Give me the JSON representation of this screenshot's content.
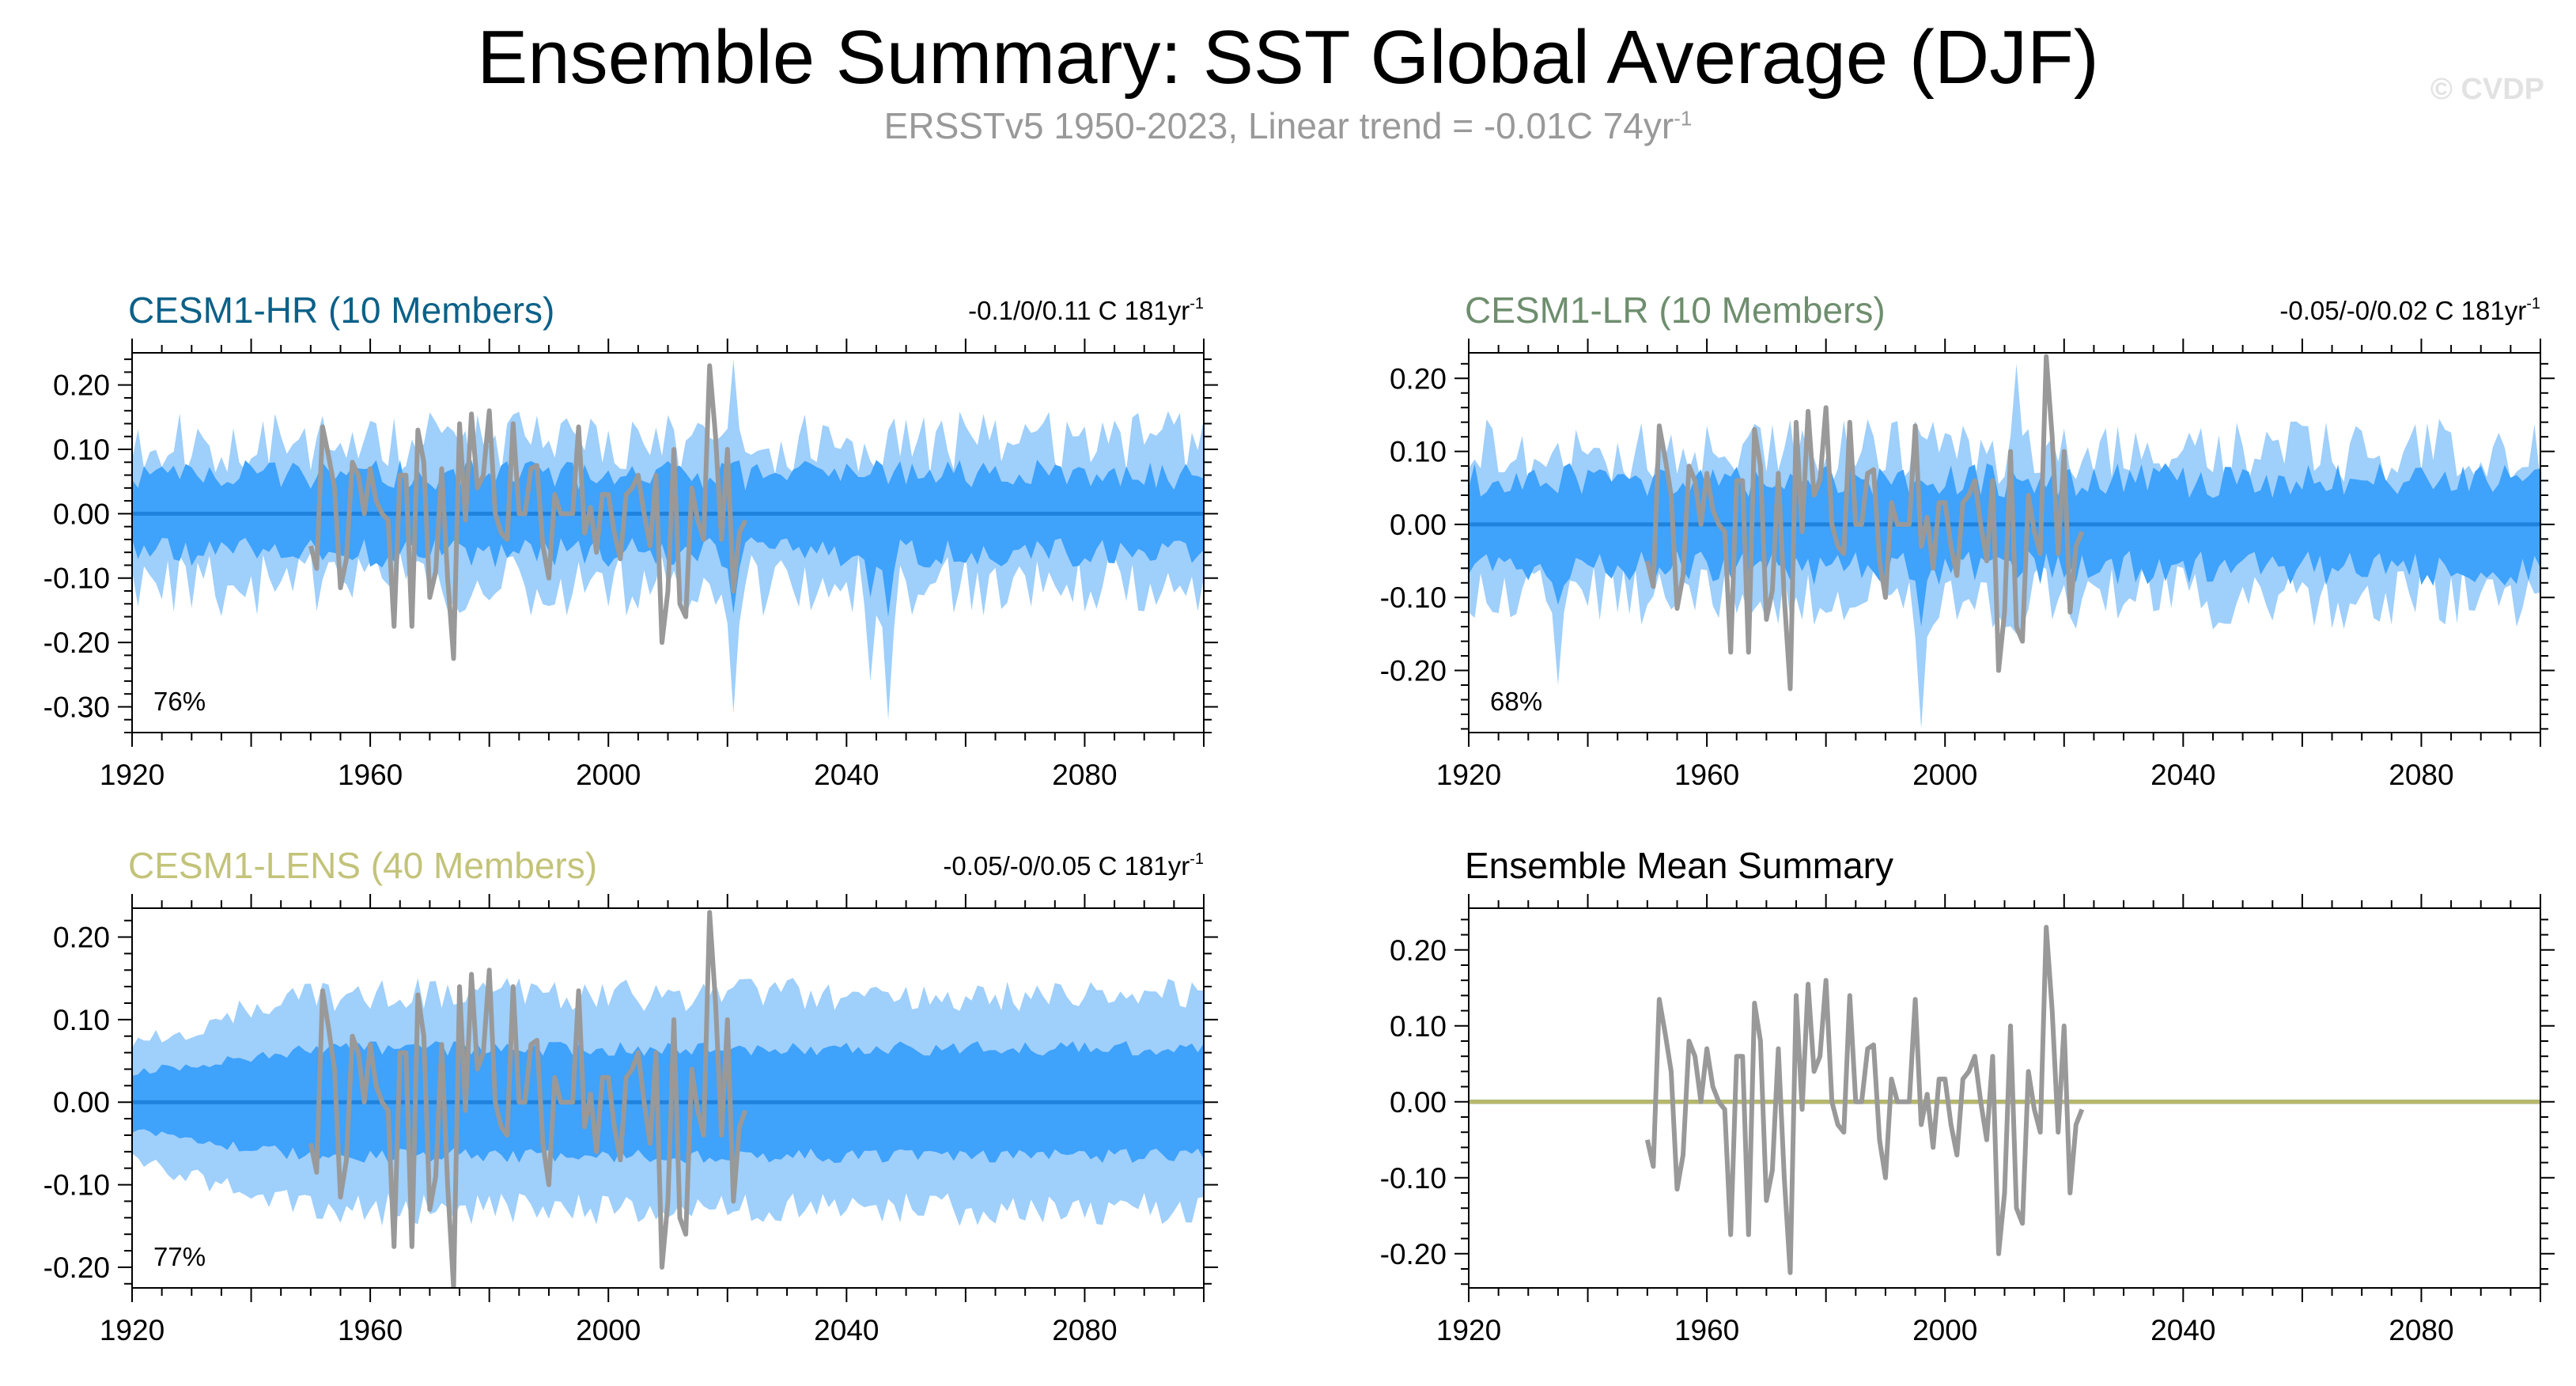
{
  "title": "Ensemble Summary: SST Global Average (DJF)",
  "subtitle": {
    "text": "ERSSTv5 1950-2023, Linear trend = -0.01C 74yr",
    "sup": "-1"
  },
  "watermark": "© CVDP",
  "colors": {
    "outer_band": "#9fcffb",
    "inner_band": "#3fa2fb",
    "ensemble_median": "#1f82dc",
    "observations": "#999999",
    "mean_hr": "#0b6188",
    "mean_lr": "#6e8e6e",
    "mean_lens": "#b8b86a",
    "frame": "#000000"
  },
  "chart_data": [
    {
      "type": "area",
      "panel": "cesm1-hr",
      "title": "CESM1-HR (10 Members)",
      "title_color": "#0b6188",
      "stat": "-0.1/0/0.11 C 181yr",
      "stat_sup": "-1",
      "percent": "76%",
      "xlim": [
        1920,
        2100
      ],
      "ylim": [
        -0.34,
        0.25
      ],
      "xticks": [
        1920,
        1960,
        2000,
        2040,
        2080
      ],
      "yticks": [
        0.2,
        0.1,
        0.0,
        -0.1,
        -0.2,
        -0.3
      ],
      "ytick_labels": [
        "0.20",
        "0.10",
        "0.00",
        "-0.10",
        "-0.20",
        "-0.30"
      ],
      "median": 0.0,
      "band_seed": 11,
      "band_spread": {
        "inner": 0.06,
        "outer": 0.11
      },
      "events": [
        {
          "year": 2021,
          "hi": 0.24,
          "lo": -0.31
        },
        {
          "year": 2047,
          "hi": 0.13,
          "lo": -0.32
        },
        {
          "year": 2044,
          "hi": 0.08,
          "lo": -0.26
        }
      ]
    },
    {
      "type": "area",
      "panel": "cesm1-lr",
      "title": "CESM1-LR (10 Members)",
      "title_color": "#6e8e6e",
      "stat": "-0.05/-0/0.02 C 181yr",
      "stat_sup": "-1",
      "percent": "68%",
      "xlim": [
        1920,
        2100
      ],
      "ylim": [
        -0.285,
        0.235
      ],
      "xticks": [
        1920,
        1960,
        2000,
        2040,
        2080
      ],
      "yticks": [
        0.2,
        0.1,
        0.0,
        -0.1,
        -0.2
      ],
      "ytick_labels": [
        "0.20",
        "0.10",
        "0.00",
        "-0.10",
        "-0.20"
      ],
      "median": 0.0,
      "band_seed": 27,
      "band_spread": {
        "inner": 0.06,
        "outer": 0.1
      },
      "events": [
        {
          "year": 1996,
          "hi": 0.1,
          "lo": -0.28
        },
        {
          "year": 2012,
          "hi": 0.22,
          "lo": -0.15
        },
        {
          "year": 1935,
          "hi": 0.08,
          "lo": -0.22
        }
      ]
    },
    {
      "type": "area",
      "panel": "cesm1-lens",
      "title": "CESM1-LENS (40 Members)",
      "title_color": "#c3c37a",
      "stat": "-0.05/-0/0.05 C 181yr",
      "stat_sup": "-1",
      "percent": "77%",
      "xlim": [
        1920,
        2100
      ],
      "ylim": [
        -0.225,
        0.235
      ],
      "xticks": [
        1920,
        1960,
        2000,
        2040,
        2080
      ],
      "yticks": [
        0.2,
        0.1,
        0.0,
        -0.1,
        -0.2
      ],
      "ytick_labels": [
        "0.20",
        "0.10",
        "0.00",
        "-0.10",
        "-0.20"
      ],
      "median": 0.0,
      "band_seed": 53,
      "band_spread": {
        "inner": 0.065,
        "outer": 0.13
      },
      "events": []
    },
    {
      "type": "line",
      "panel": "ensemble-mean",
      "title": "Ensemble Mean Summary",
      "title_color": "#000000",
      "xlim": [
        1920,
        2100
      ],
      "ylim": [
        -0.245,
        0.255
      ],
      "xticks": [
        1920,
        1960,
        2000,
        2040,
        2080
      ],
      "yticks": [
        0.2,
        0.1,
        0.0,
        -0.1,
        -0.2
      ],
      "ytick_labels": [
        "0.20",
        "0.10",
        "0.00",
        "-0.10",
        "-0.20"
      ],
      "series": [
        {
          "key": "hr",
          "color": "#0b6188",
          "value": 0.0
        },
        {
          "key": "lr",
          "color": "#6e8e6e",
          "value": 0.0
        },
        {
          "key": "lens",
          "color": "#b8b86a",
          "value": 0.0
        }
      ]
    }
  ],
  "observations": {
    "name": "ERSSTv5",
    "years": [
      1950,
      1951,
      1952,
      1953,
      1954,
      1955,
      1956,
      1957,
      1958,
      1959,
      1960,
      1961,
      1962,
      1963,
      1964,
      1965,
      1966,
      1967,
      1968,
      1969,
      1970,
      1971,
      1972,
      1973,
      1974,
      1975,
      1976,
      1977,
      1978,
      1979,
      1980,
      1981,
      1982,
      1983,
      1984,
      1985,
      1986,
      1987,
      1988,
      1989,
      1990,
      1991,
      1992,
      1993,
      1994,
      1995,
      1996,
      1997,
      1998,
      1999,
      2000,
      2001,
      2002,
      2003,
      2004,
      2005,
      2006,
      2007,
      2008,
      2009,
      2010,
      2011,
      2012,
      2013,
      2014,
      2015,
      2016,
      2017,
      2018,
      2019,
      2020,
      2021,
      2022,
      2023
    ],
    "values": [
      -0.05,
      -0.085,
      0.135,
      0.09,
      0.04,
      -0.115,
      -0.07,
      0.08,
      0.06,
      0.0,
      0.07,
      0.02,
      0.0,
      -0.01,
      -0.175,
      0.06,
      0.06,
      -0.175,
      0.13,
      0.08,
      -0.13,
      -0.09,
      0.07,
      -0.1,
      -0.225,
      0.14,
      -0.01,
      0.155,
      0.04,
      0.06,
      0.16,
      0.0,
      -0.03,
      -0.04,
      0.14,
      0.0,
      0.0,
      0.07,
      0.075,
      -0.05,
      -0.1,
      0.03,
      0.0,
      0.0,
      0.0,
      0.135,
      -0.03,
      0.01,
      -0.06,
      0.03,
      0.03,
      -0.03,
      -0.07,
      0.03,
      0.04,
      0.06,
      0.0,
      -0.05,
      0.06,
      -0.2,
      -0.12,
      0.1,
      -0.14,
      -0.16,
      0.04,
      -0.01,
      -0.04,
      0.23,
      0.12,
      -0.04,
      0.1,
      -0.12,
      -0.03,
      -0.01
    ]
  }
}
